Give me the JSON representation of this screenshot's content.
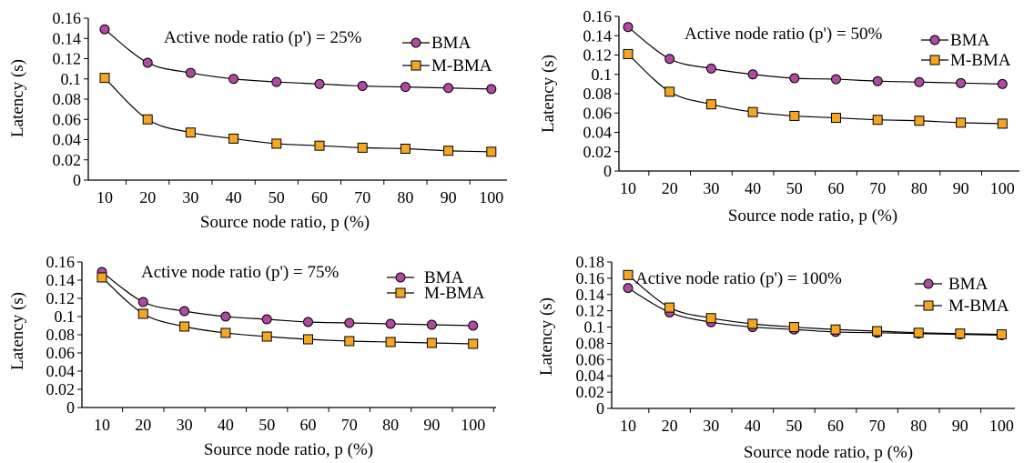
{
  "chart_data": [
    {
      "type": "line",
      "annotation": "Active node ratio (p') = 25%",
      "xlabel": "Source node ratio, p (%)",
      "ylabel": "Latency (s)",
      "x": [
        10,
        20,
        30,
        40,
        50,
        60,
        70,
        80,
        90,
        100
      ],
      "x_tick_labels": [
        "10",
        "20",
        "30",
        "40",
        "50",
        "60",
        "70",
        "80",
        "90",
        "100"
      ],
      "ylim": [
        0,
        0.16
      ],
      "y_ticks": [
        "0",
        "0.02",
        "0.04",
        "0.06",
        "0.08",
        "0.1",
        "0.12",
        "0.14",
        "0.16"
      ],
      "legend_position": "top-right",
      "series": [
        {
          "name": "BMA",
          "marker": "circle",
          "color": "#b04aa0",
          "values": [
            0.149,
            0.116,
            0.106,
            0.1,
            0.097,
            0.095,
            0.093,
            0.092,
            0.091,
            0.09
          ]
        },
        {
          "name": "M-BMA",
          "marker": "square",
          "color": "#f5a623",
          "values": [
            0.101,
            0.06,
            0.047,
            0.041,
            0.036,
            0.034,
            0.032,
            0.031,
            0.029,
            0.028
          ]
        }
      ]
    },
    {
      "type": "line",
      "annotation": "Active node ratio (p') = 50%",
      "xlabel": "Source node ratio, p (%)",
      "ylabel": "Latency (s)",
      "x": [
        10,
        20,
        30,
        40,
        50,
        60,
        70,
        80,
        90,
        100
      ],
      "x_tick_labels": [
        "10",
        "20",
        "30",
        "40",
        "50",
        "60",
        "70",
        "80",
        "90",
        "100"
      ],
      "ylim": [
        0,
        0.16
      ],
      "y_ticks": [
        "0",
        "0.02",
        "0.04",
        "0.06",
        "0.08",
        "0.1",
        "0.12",
        "0.14",
        "0.16"
      ],
      "legend_position": "top-right",
      "series": [
        {
          "name": "BMA",
          "marker": "circle",
          "color": "#b04aa0",
          "values": [
            0.149,
            0.116,
            0.106,
            0.1,
            0.096,
            0.095,
            0.093,
            0.092,
            0.091,
            0.09
          ]
        },
        {
          "name": "M-BMA",
          "marker": "square",
          "color": "#f5a623",
          "values": [
            0.121,
            0.082,
            0.069,
            0.061,
            0.057,
            0.055,
            0.053,
            0.052,
            0.05,
            0.049
          ]
        }
      ]
    },
    {
      "type": "line",
      "annotation": "Active node ratio (p') = 75%",
      "xlabel": "Source node ratio, p (%)",
      "ylabel": "Latency (s)",
      "x": [
        10,
        20,
        30,
        40,
        50,
        60,
        70,
        80,
        90,
        100
      ],
      "x_tick_labels": [
        "10",
        "20",
        "30",
        "40",
        "50",
        "60",
        "70",
        "80",
        "90",
        "100"
      ],
      "ylim": [
        0,
        0.16
      ],
      "y_ticks": [
        "0",
        "0.02",
        "0.04",
        "0.06",
        "0.08",
        "0.1",
        "0.12",
        "0.14",
        "0.16"
      ],
      "legend_position": "top-right",
      "series": [
        {
          "name": "BMA",
          "marker": "circle",
          "color": "#b04aa0",
          "values": [
            0.149,
            0.116,
            0.106,
            0.1,
            0.097,
            0.094,
            0.093,
            0.092,
            0.091,
            0.09
          ]
        },
        {
          "name": "M-BMA",
          "marker": "square",
          "color": "#f5a623",
          "values": [
            0.143,
            0.103,
            0.089,
            0.082,
            0.078,
            0.075,
            0.073,
            0.072,
            0.071,
            0.07
          ]
        }
      ]
    },
    {
      "type": "line",
      "annotation": "Active node ratio (p') = 100%",
      "xlabel": "Source node ratio, p (%)",
      "ylabel": "Latency (s)",
      "x": [
        10,
        20,
        30,
        40,
        50,
        60,
        70,
        80,
        90,
        100
      ],
      "x_tick_labels": [
        "10",
        "20",
        "30",
        "40",
        "50",
        "60",
        "70",
        "80",
        "90",
        "100"
      ],
      "ylim": [
        0,
        0.18
      ],
      "y_ticks": [
        "0",
        "0.02",
        "0.04",
        "0.06",
        "0.08",
        "0.1",
        "0.12",
        "0.14",
        "0.16",
        "0.18"
      ],
      "legend_position": "top-right",
      "series": [
        {
          "name": "BMA",
          "marker": "circle",
          "color": "#b04aa0",
          "values": [
            0.148,
            0.118,
            0.106,
            0.1,
            0.097,
            0.094,
            0.093,
            0.092,
            0.091,
            0.09
          ]
        },
        {
          "name": "M-BMA",
          "marker": "square",
          "color": "#f5a623",
          "values": [
            0.164,
            0.124,
            0.111,
            0.104,
            0.1,
            0.097,
            0.095,
            0.093,
            0.092,
            0.091
          ]
        }
      ]
    }
  ]
}
